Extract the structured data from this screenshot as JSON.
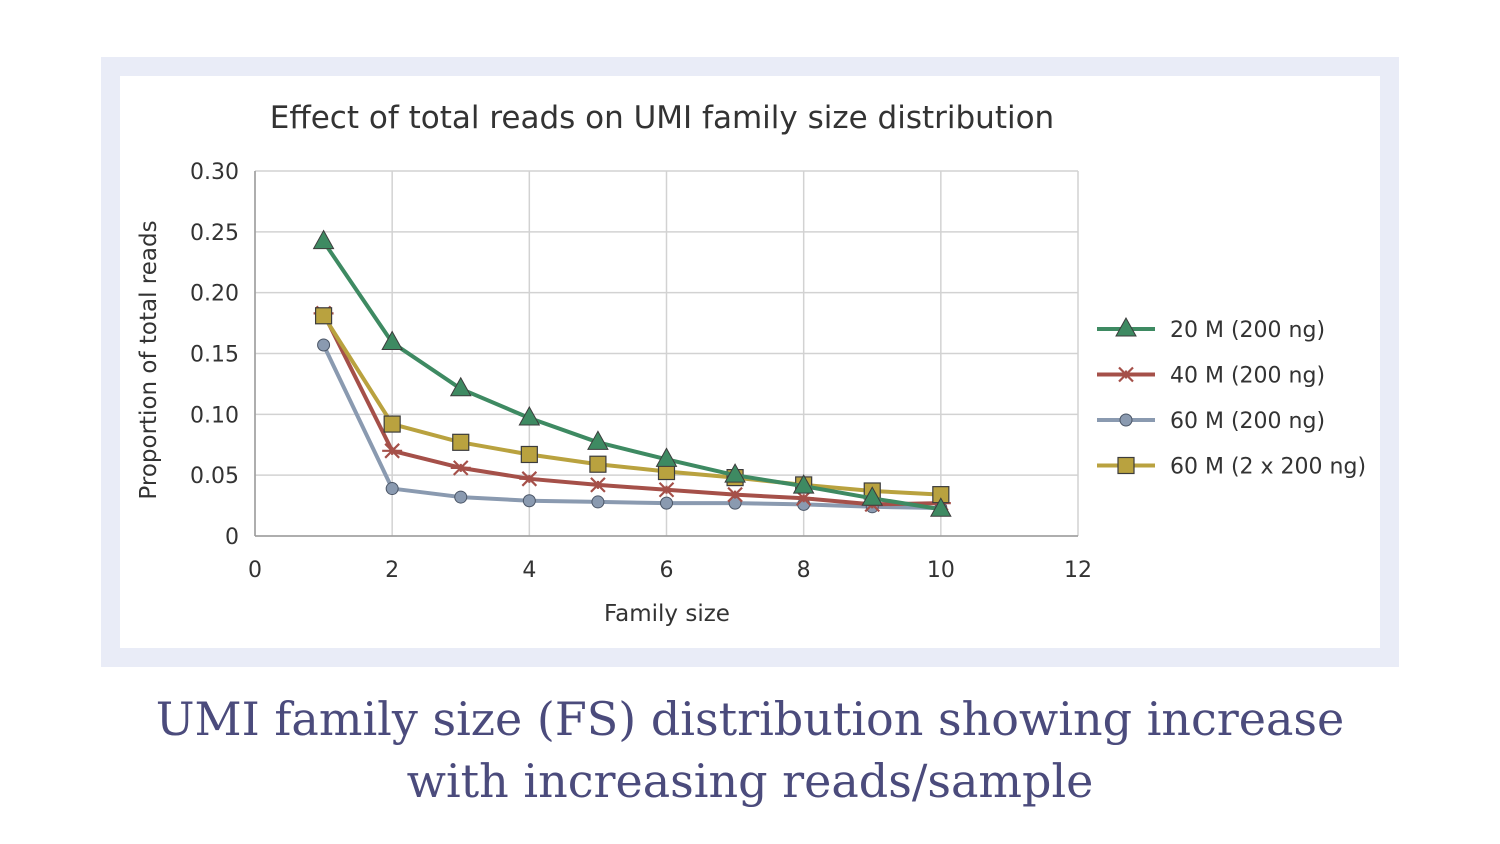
{
  "chart_data": {
    "type": "line",
    "title": "Effect of total reads on UMI family size distribution",
    "xlabel": "Family size",
    "ylabel": "Proportion of total reads",
    "xlim": [
      0,
      12
    ],
    "ylim": [
      0,
      0.3
    ],
    "xticks": [
      0,
      2,
      4,
      6,
      8,
      10,
      12
    ],
    "xtick_labels": [
      "0",
      "2",
      "4",
      "6",
      "8",
      "10",
      "12"
    ],
    "yticks": [
      0,
      0.05,
      0.1,
      0.15,
      0.2,
      0.25,
      0.3
    ],
    "ytick_labels": [
      "0",
      "0.05",
      "0.10",
      "0.15",
      "0.20",
      "0.25",
      "0.30"
    ],
    "grid": true,
    "legend_position": "right",
    "x": [
      1,
      2,
      3,
      4,
      5,
      6,
      7,
      8,
      9,
      10
    ],
    "series": [
      {
        "name": "20 M (200 ng)",
        "color": "#3e8a62",
        "marker": "triangle",
        "values": [
          0.242,
          0.159,
          0.121,
          0.097,
          0.077,
          0.063,
          0.05,
          0.041,
          0.031,
          0.022
        ]
      },
      {
        "name": "40 M (200 ng)",
        "color": "#a55049",
        "marker": "star",
        "values": [
          0.183,
          0.07,
          0.056,
          0.047,
          0.042,
          0.038,
          0.034,
          0.031,
          0.026,
          0.027
        ]
      },
      {
        "name": "60 M (200 ng)",
        "color": "#8a9ab0",
        "marker": "circle",
        "values": [
          0.157,
          0.039,
          0.032,
          0.029,
          0.028,
          0.027,
          0.027,
          0.026,
          0.024,
          0.023
        ]
      },
      {
        "name": "60 M (2 x 200 ng)",
        "color": "#b9a23f",
        "marker": "square",
        "values": [
          0.181,
          0.092,
          0.077,
          0.067,
          0.059,
          0.053,
          0.048,
          0.042,
          0.037,
          0.034
        ]
      }
    ]
  },
  "caption": {
    "line1": "UMI family size (FS) distribution showing increase",
    "line2": "with increasing reads/sample"
  }
}
